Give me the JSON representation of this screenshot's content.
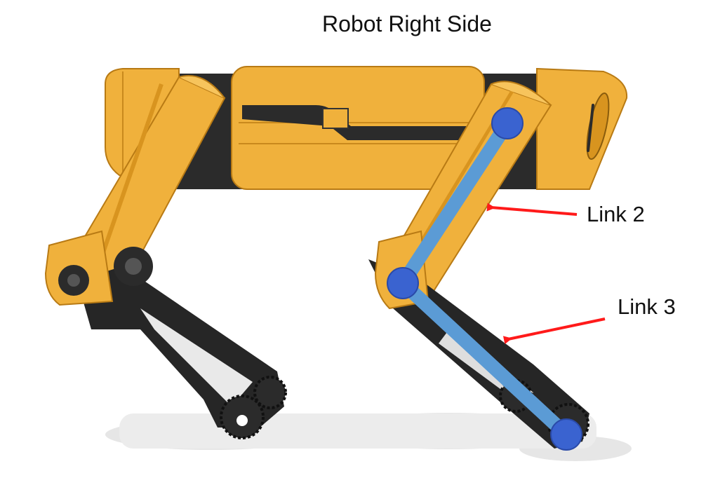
{
  "title": "Robot Right Side",
  "labels": {
    "link2": "Link 2",
    "link3": "Link 3"
  },
  "colors": {
    "body": "#f0b13c",
    "body_shade": "#d8941f",
    "body_dark": "#b87a14",
    "leg_dark": "#262626",
    "link": "#5b9bd5",
    "joint": "#3a63d0",
    "joint_outline": "#2a4aa8",
    "arrow": "#ff1a1a",
    "shadow": "#e4e4e4"
  }
}
